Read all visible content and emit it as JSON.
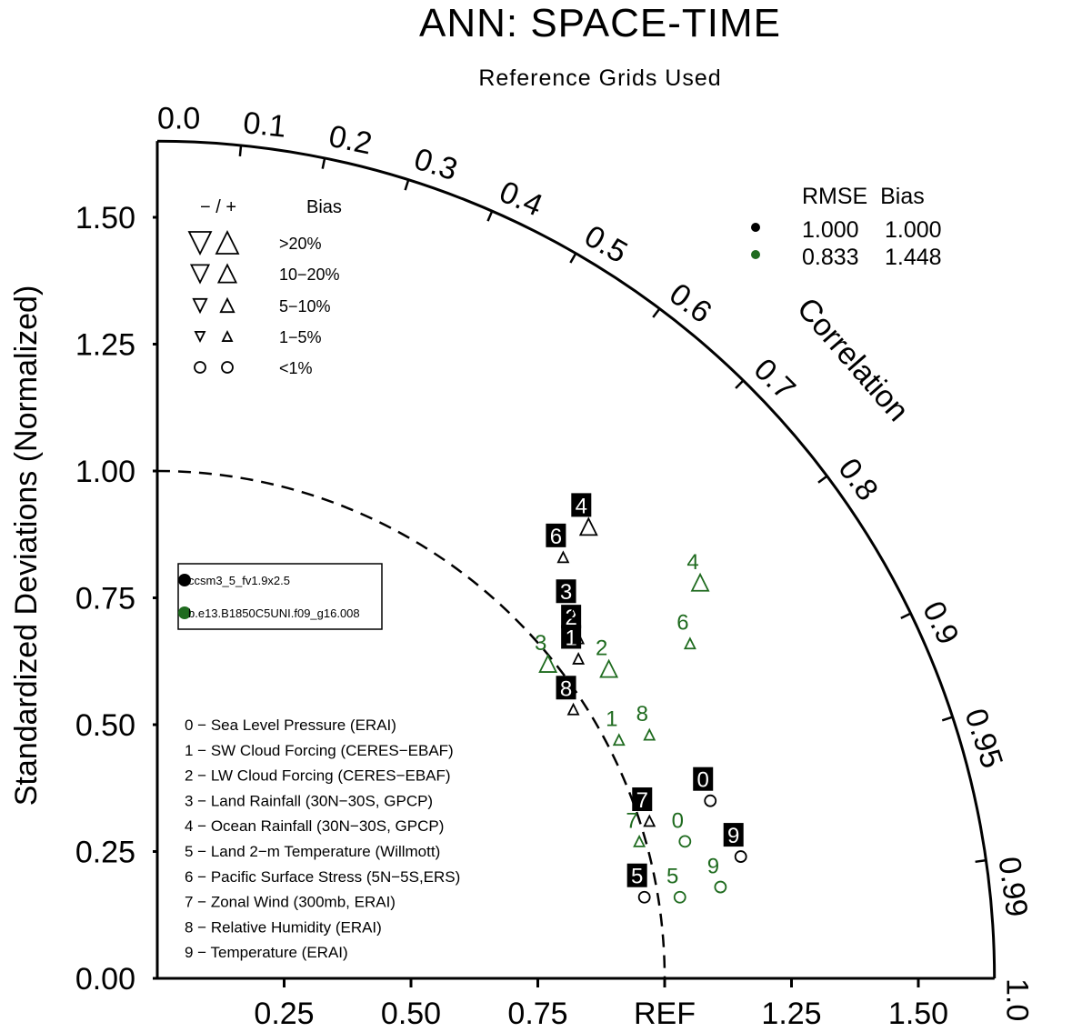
{
  "chart_data": {
    "type": "scatter",
    "title": "ANN: SPACE-TIME",
    "subtitle": "Reference Grids Used",
    "ylabel": "Standardized Deviations (Normalized)",
    "corr_label": "Correlation",
    "x_ticks": [
      "0.25",
      "0.50",
      "0.75",
      "REF",
      "1.25",
      "1.50"
    ],
    "x_tick_values": [
      0.25,
      0.5,
      0.75,
      1.0,
      1.25,
      1.5
    ],
    "y_ticks": [
      "0.00",
      "0.25",
      "0.50",
      "0.75",
      "1.00",
      "1.25",
      "1.50"
    ],
    "y_tick_values": [
      0,
      0.25,
      0.5,
      0.75,
      1.0,
      1.25,
      1.5
    ],
    "corr_ticks": [
      "0.0",
      "0.1",
      "0.2",
      "0.3",
      "0.4",
      "0.5",
      "0.6",
      "0.7",
      "0.8",
      "0.9",
      "0.95",
      "0.99",
      "1.0"
    ],
    "corr_tick_values": [
      0.0,
      0.1,
      0.2,
      0.3,
      0.4,
      0.5,
      0.6,
      0.7,
      0.8,
      0.9,
      0.95,
      0.99,
      1.0
    ],
    "max_std": 1.65,
    "ref_std": 1.0,
    "bias_legend": {
      "header_symbols": "− / +",
      "header_label": "Bias",
      "rows": [
        {
          "label": ">20%",
          "shape": "triangle",
          "size": 1.0
        },
        {
          "label": "10−20%",
          "shape": "triangle",
          "size": 0.8
        },
        {
          "label": "5−10%",
          "shape": "triangle",
          "size": 0.6
        },
        {
          "label": "1−5%",
          "shape": "triangle",
          "size": 0.42
        },
        {
          "label": "<1%",
          "shape": "circle",
          "size": 0.5
        }
      ]
    },
    "rmse_header": "RMSE  Bias",
    "series": [
      {
        "name": "ccsm3_5_fv1.9x2.5",
        "color": "#000000",
        "rmse": "1.000",
        "bias": "1.000",
        "points": [
          {
            "id": "0",
            "x": 1.09,
            "y": 0.35,
            "marker": "circle"
          },
          {
            "id": "1",
            "x": 0.83,
            "y": 0.63,
            "marker": "triangle-up-small"
          },
          {
            "id": "2",
            "x": 0.83,
            "y": 0.67,
            "marker": "triangle-up-small"
          },
          {
            "id": "3",
            "x": 0.82,
            "y": 0.72,
            "marker": "triangle-up-small"
          },
          {
            "id": "4",
            "x": 0.85,
            "y": 0.89,
            "marker": "triangle-up"
          },
          {
            "id": "5",
            "x": 0.96,
            "y": 0.16,
            "marker": "circle"
          },
          {
            "id": "6",
            "x": 0.8,
            "y": 0.83,
            "marker": "triangle-up-small"
          },
          {
            "id": "7",
            "x": 0.97,
            "y": 0.31,
            "marker": "triangle-up-small"
          },
          {
            "id": "8",
            "x": 0.82,
            "y": 0.53,
            "marker": "triangle-up-small"
          },
          {
            "id": "9",
            "x": 1.15,
            "y": 0.24,
            "marker": "circle"
          }
        ]
      },
      {
        "name": "b.e13.B1850C5UNI.f09_g16.008",
        "color": "#1f6b1f",
        "rmse": "0.833",
        "bias": "1.448",
        "points": [
          {
            "id": "0",
            "x": 1.04,
            "y": 0.27,
            "marker": "circle"
          },
          {
            "id": "1",
            "x": 0.91,
            "y": 0.47,
            "marker": "triangle-up-small"
          },
          {
            "id": "2",
            "x": 0.89,
            "y": 0.61,
            "marker": "triangle-up"
          },
          {
            "id": "3",
            "x": 0.77,
            "y": 0.62,
            "marker": "triangle-up"
          },
          {
            "id": "4",
            "x": 1.07,
            "y": 0.78,
            "marker": "triangle-up"
          },
          {
            "id": "5",
            "x": 1.03,
            "y": 0.16,
            "marker": "circle"
          },
          {
            "id": "6",
            "x": 1.05,
            "y": 0.66,
            "marker": "triangle-up-small"
          },
          {
            "id": "7",
            "x": 0.95,
            "y": 0.27,
            "marker": "triangle-up-small"
          },
          {
            "id": "8",
            "x": 0.97,
            "y": 0.48,
            "marker": "triangle-up-small"
          },
          {
            "id": "9",
            "x": 1.11,
            "y": 0.18,
            "marker": "circle"
          }
        ]
      }
    ],
    "variables": [
      "0 − Sea Level Pressure (ERAI)",
      "1 − SW Cloud Forcing (CERES−EBAF)",
      "2 − LW Cloud Forcing (CERES−EBAF)",
      "3 − Land Rainfall (30N−30S, GPCP)",
      "4 − Ocean Rainfall (30N−30S, GPCP)",
      "5 − Land 2−m Temperature (Willmott)",
      "6 − Pacific Surface Stress (5N−5S,ERS)",
      "7 − Zonal Wind (300mb, ERAI)",
      "8 − Relative Humidity (ERAI)",
      "9 − Temperature (ERAI)"
    ]
  }
}
